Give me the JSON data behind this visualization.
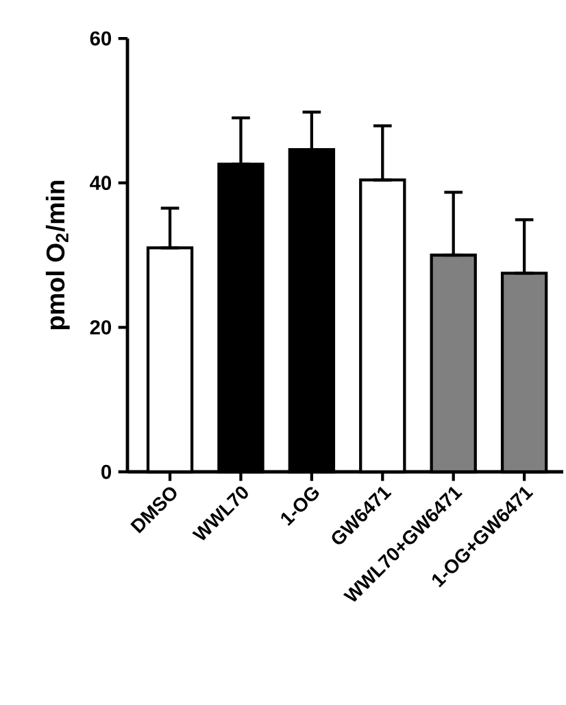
{
  "chart_data": {
    "type": "bar",
    "ylabel": "pmol O$_{2}$/min",
    "categories": [
      "DMSO",
      "WWL70",
      "1-OG",
      "GW6471",
      "WWL70+GW6471",
      "1-OG+GW6471"
    ],
    "values": [
      31.0,
      42.6,
      44.6,
      40.4,
      30.0,
      27.5
    ],
    "errors": [
      [
        31.0,
        36.5
      ],
      [
        42.6,
        49.0
      ],
      [
        44.6,
        49.8
      ],
      [
        40.4,
        47.9
      ],
      [
        30.0,
        38.7
      ],
      [
        27.5,
        34.9
      ]
    ],
    "colors": [
      "#ffffff",
      "#000000",
      "#000000",
      "#ffffff",
      "#808080",
      "#808080"
    ],
    "ylim": [
      0,
      60
    ],
    "yticks": [
      0,
      20,
      40,
      60
    ],
    "grid": false
  }
}
